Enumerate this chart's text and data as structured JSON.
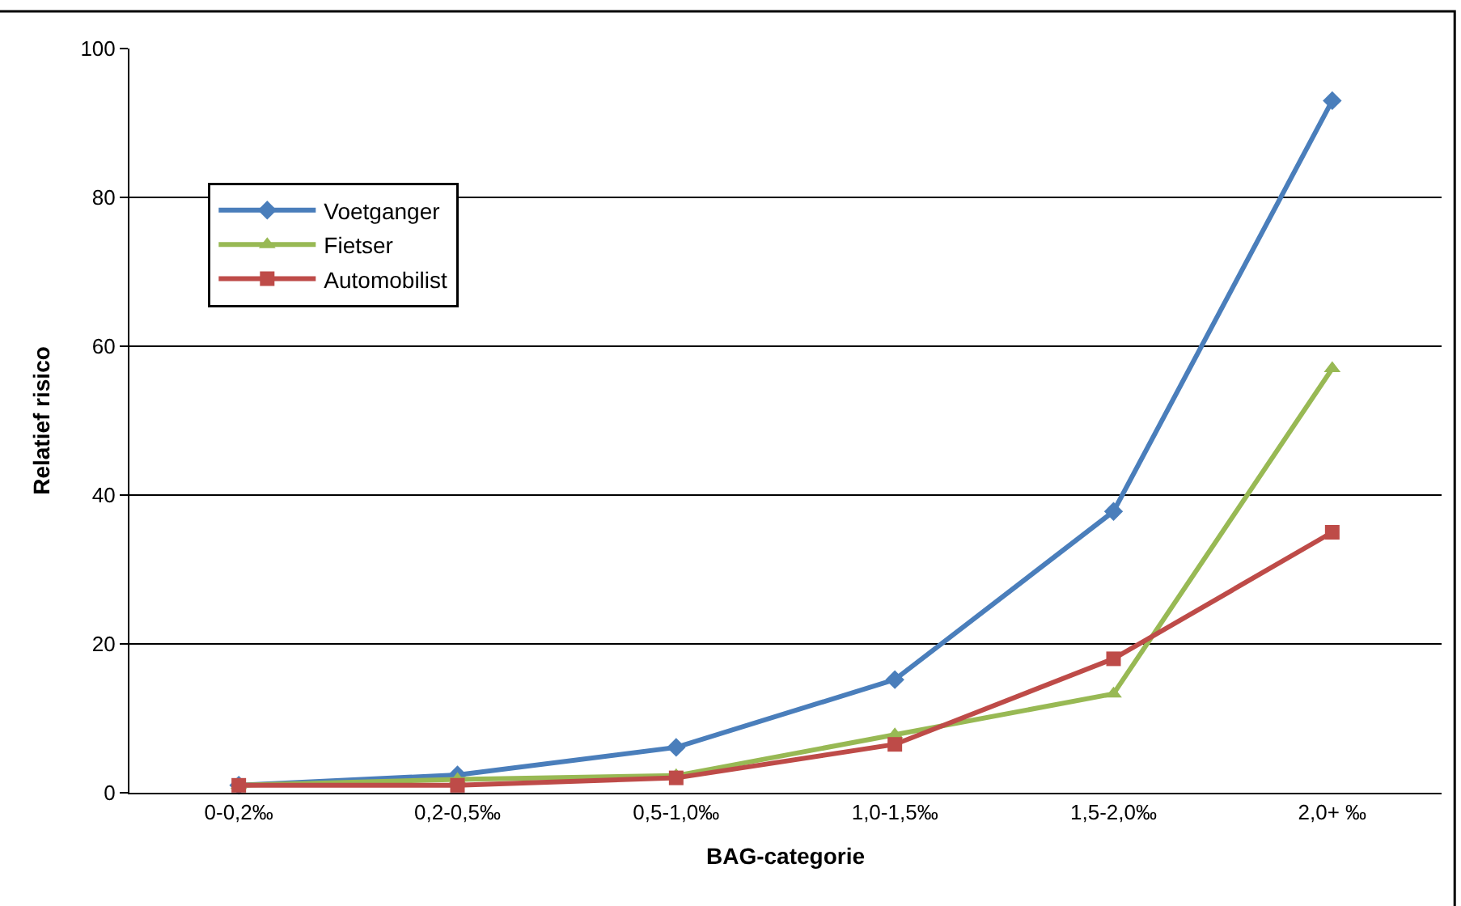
{
  "chart_data": {
    "type": "line",
    "xlabel": "BAG-categorie",
    "ylabel": "Relatief risico",
    "categories": [
      "0-0,2‰",
      "0,2-0,5‰",
      "0,5-1,0‰",
      "1,0-1,5‰",
      "1,5-2,0‰",
      "2,0+ ‰"
    ],
    "series": [
      {
        "name": "Voetganger",
        "color": "#4a7ebb",
        "marker": "diamond",
        "values": [
          1,
          2.4,
          6.1,
          15.2,
          37.8,
          93
        ]
      },
      {
        "name": "Fietser",
        "color": "#98b954",
        "marker": "triangle",
        "values": [
          1,
          1.8,
          2.3,
          7.8,
          13.3,
          57
        ]
      },
      {
        "name": "Automobilist",
        "color": "#be4b48",
        "marker": "square",
        "values": [
          1,
          1,
          2,
          6.5,
          18,
          35
        ]
      }
    ],
    "ylim": [
      0,
      100
    ],
    "yticks": [
      0,
      20,
      40,
      60,
      80,
      100
    ],
    "grid": "y",
    "legend": "top left",
    "line_style": "solid"
  }
}
